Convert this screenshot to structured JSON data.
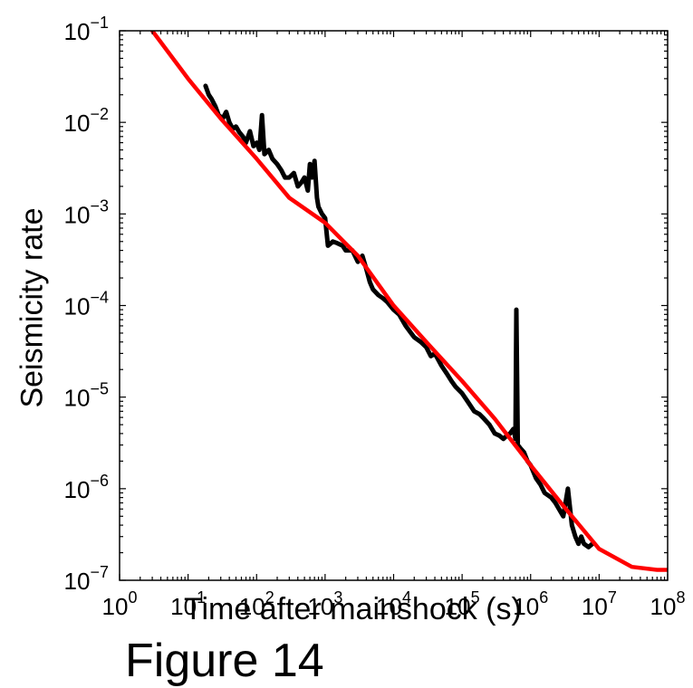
{
  "caption": "Figure 14",
  "chart_data": {
    "type": "line",
    "title": "",
    "xlabel": "Time after mainshock (s)",
    "ylabel": "Seismicity rate",
    "xscale": "log",
    "yscale": "log",
    "xlim": [
      1,
      100000000
    ],
    "ylim": [
      1e-07,
      0.1
    ],
    "grid": false,
    "legend": "none",
    "x_ticks": [
      {
        "base": "10",
        "exp": "0"
      },
      {
        "base": "10",
        "exp": "1"
      },
      {
        "base": "10",
        "exp": "2"
      },
      {
        "base": "10",
        "exp": "3"
      },
      {
        "base": "10",
        "exp": "4"
      },
      {
        "base": "10",
        "exp": "5"
      },
      {
        "base": "10",
        "exp": "6"
      },
      {
        "base": "10",
        "exp": "7"
      },
      {
        "base": "10",
        "exp": "8"
      }
    ],
    "y_ticks": [
      {
        "base": "10",
        "exp": "−7"
      },
      {
        "base": "10",
        "exp": "−6"
      },
      {
        "base": "10",
        "exp": "−5"
      },
      {
        "base": "10",
        "exp": "−4"
      },
      {
        "base": "10",
        "exp": "−3"
      },
      {
        "base": "10",
        "exp": "−2"
      },
      {
        "base": "10",
        "exp": "−1"
      }
    ],
    "series": [
      {
        "color": "#000000",
        "style": "jagged observed rate",
        "x": [
          18,
          20,
          22,
          25,
          28,
          32,
          36,
          40,
          45,
          50,
          56,
          63,
          70,
          80,
          90,
          100,
          110,
          120,
          130,
          150,
          170,
          200,
          230,
          260,
          300,
          350,
          400,
          450,
          500,
          560,
          600,
          650,
          700,
          760,
          800,
          900,
          1000,
          1100,
          1300,
          1500,
          1800,
          2000,
          2500,
          3000,
          3500,
          4000,
          4500,
          5000,
          6000,
          7000,
          8000,
          10000,
          12000,
          15000,
          18000,
          20000,
          25000,
          30000,
          35000,
          40000,
          50000,
          60000,
          70000,
          80000,
          100000,
          120000,
          150000,
          180000,
          200000,
          250000,
          300000,
          350000,
          400000,
          450000,
          500000,
          560000,
          580000,
          600000,
          620000,
          650000,
          700000,
          800000,
          900000,
          1000000,
          1200000,
          1400000,
          1600000,
          2000000,
          2300000,
          2600000,
          3000000,
          3500000,
          4000000,
          4500000,
          5000000,
          5500000,
          6000000,
          7000000,
          8000000
        ],
        "y": [
          0.025,
          0.02,
          0.018,
          0.015,
          0.012,
          0.011,
          0.013,
          0.01,
          0.0085,
          0.009,
          0.0078,
          0.007,
          0.006,
          0.008,
          0.0055,
          0.006,
          0.005,
          0.012,
          0.0045,
          0.005,
          0.004,
          0.0035,
          0.003,
          0.0025,
          0.0025,
          0.0028,
          0.002,
          0.0022,
          0.0025,
          0.0018,
          0.0035,
          0.0025,
          0.0038,
          0.0015,
          0.0012,
          0.001,
          0.0009,
          0.00045,
          0.0005,
          0.00048,
          0.00045,
          0.0004,
          0.0004,
          0.0003,
          0.00035,
          0.00025,
          0.00018,
          0.00015,
          0.00013,
          0.00012,
          0.00011,
          9e-05,
          8e-05,
          6e-05,
          5e-05,
          4.5e-05,
          4e-05,
          3.5e-05,
          2.8e-05,
          3e-05,
          2.2e-05,
          1.8e-05,
          1.5e-05,
          1.3e-05,
          1.1e-05,
          9e-06,
          7e-06,
          6.5e-06,
          6e-06,
          5e-06,
          4e-06,
          3.8e-06,
          3.5e-06,
          3.8e-06,
          4e-06,
          4.5e-06,
          4e-06,
          3.5e-06,
          9e-05,
          3e-06,
          2.8e-06,
          2.5e-06,
          2e-06,
          1.8e-06,
          1.3e-06,
          1.1e-06,
          9e-07,
          8e-07,
          7e-07,
          6e-07,
          5e-07,
          1e-06,
          4e-07,
          3e-07,
          2.5e-07,
          3e-07,
          2.5e-07,
          2.3e-07,
          2.5e-07
        ]
      },
      {
        "color": "#ff0000",
        "style": "smooth fit",
        "x": [
          3,
          10,
          30,
          100,
          300,
          1000,
          3000,
          10000,
          30000,
          100000,
          300000,
          1000000,
          3000000,
          10000000,
          30000000,
          70000000,
          100000000
        ],
        "y": [
          0.1,
          0.03,
          0.011,
          0.004,
          0.0015,
          0.0008,
          0.00035,
          0.0001,
          4e-05,
          1.5e-05,
          5.8e-06,
          1.8e-06,
          6.5e-07,
          2.2e-07,
          1.4e-07,
          1.3e-07,
          1.3e-07
        ]
      }
    ]
  }
}
